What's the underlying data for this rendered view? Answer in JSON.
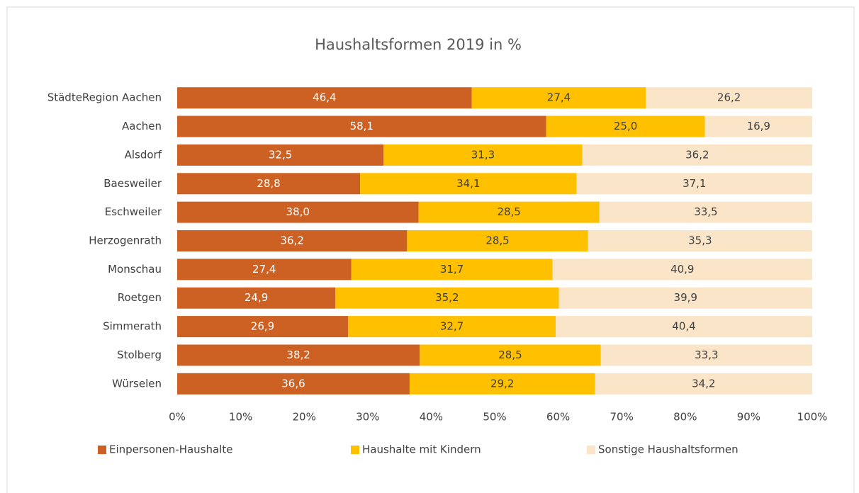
{
  "chart_data": {
    "type": "stacked_bar_horizontal",
    "title": "Haushaltsformen 2019 in %",
    "categories": [
      "StädteRegion Aachen",
      "Aachen",
      "Alsdorf",
      "Baesweiler",
      "Eschweiler",
      "Herzogenrath",
      "Monschau",
      "Roetgen",
      "Simmerath",
      "Stolberg",
      "Würselen"
    ],
    "series": [
      {
        "name": "Einpersonen-Haushalte",
        "color": "#cc6123",
        "values": [
          46.4,
          58.1,
          32.5,
          28.8,
          38.0,
          36.2,
          27.4,
          24.9,
          26.9,
          38.2,
          36.6
        ],
        "value_labels": [
          "46,4",
          "58,1",
          "32,5",
          "28,8",
          "38,0",
          "36,2",
          "27,4",
          "24,9",
          "26,9",
          "38,2",
          "36,6"
        ]
      },
      {
        "name": "Haushalte mit Kindern",
        "color": "#ffc000",
        "values": [
          27.4,
          25.0,
          31.3,
          34.1,
          28.5,
          28.5,
          31.7,
          35.2,
          32.7,
          28.5,
          29.2
        ],
        "value_labels": [
          "27,4",
          "25,0",
          "31,3",
          "34,1",
          "28,5",
          "28,5",
          "31,7",
          "35,2",
          "32,7",
          "28,5",
          "29,2"
        ]
      },
      {
        "name": "Sonstige Haushaltsformen",
        "color": "#fbe5c8",
        "values": [
          26.2,
          16.9,
          36.2,
          37.1,
          33.5,
          35.3,
          40.9,
          39.9,
          40.4,
          33.3,
          34.2
        ],
        "value_labels": [
          "26,2",
          "16,9",
          "36,2",
          "37,1",
          "33,5",
          "35,3",
          "40,9",
          "39,9",
          "40,4",
          "33,3",
          "34,2"
        ]
      }
    ],
    "xlim": [
      0,
      100
    ],
    "xticks": [
      {
        "value": 0,
        "label": "0%"
      },
      {
        "value": 10,
        "label": "10%"
      },
      {
        "value": 20,
        "label": "20%"
      },
      {
        "value": 30,
        "label": "30%"
      },
      {
        "value": 40,
        "label": "40%"
      },
      {
        "value": 50,
        "label": "50%"
      },
      {
        "value": 60,
        "label": "60%"
      },
      {
        "value": 70,
        "label": "70%"
      },
      {
        "value": 80,
        "label": "80%"
      },
      {
        "value": 90,
        "label": "90%"
      },
      {
        "value": 100,
        "label": "100%"
      }
    ],
    "grid": false,
    "legend": "bottom"
  }
}
